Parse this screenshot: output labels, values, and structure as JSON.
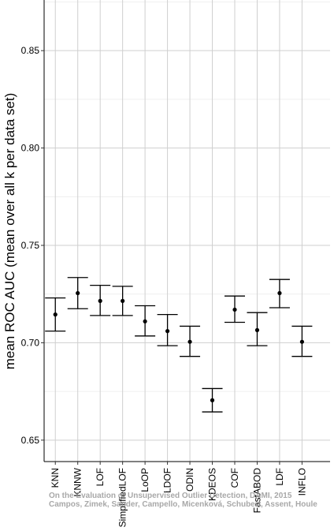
{
  "chart_data": {
    "type": "errorbar",
    "ylabel": "mean ROC AUC (mean over all k per data set)",
    "xlabel": "",
    "ylim": [
      0.639,
      0.876
    ],
    "yticks": [
      0.65,
      0.7,
      0.75,
      0.8,
      0.85
    ],
    "ytick_labels": [
      "0.65",
      "0.70",
      "0.75",
      "0.80",
      "0.85"
    ],
    "grid": true,
    "categories": [
      "KNN",
      "KNNW",
      "LOF",
      "SimplifiedLOF",
      "LoOP",
      "LDOF",
      "ODIN",
      "KDEOS",
      "COF",
      "FastABOD",
      "LDF",
      "INFLO"
    ],
    "values": [
      0.7145,
      0.7255,
      0.7215,
      0.7215,
      0.711,
      0.706,
      0.7005,
      0.6705,
      0.717,
      0.7065,
      0.7255,
      0.7005
    ],
    "lower": [
      0.706,
      0.7175,
      0.714,
      0.714,
      0.7035,
      0.6985,
      0.693,
      0.6645,
      0.7105,
      0.6985,
      0.718,
      0.693
    ],
    "upper": [
      0.723,
      0.7335,
      0.7295,
      0.729,
      0.719,
      0.7145,
      0.7085,
      0.6765,
      0.724,
      0.7155,
      0.7325,
      0.7085
    ]
  },
  "watermark": {
    "line1": "On the Evaluation of Unsupervised Outlier Detection, DAMI, 2015",
    "line2": "Campos, Zimek, Sander, Campello, Micenková, Schubert, Assent, Houle"
  }
}
